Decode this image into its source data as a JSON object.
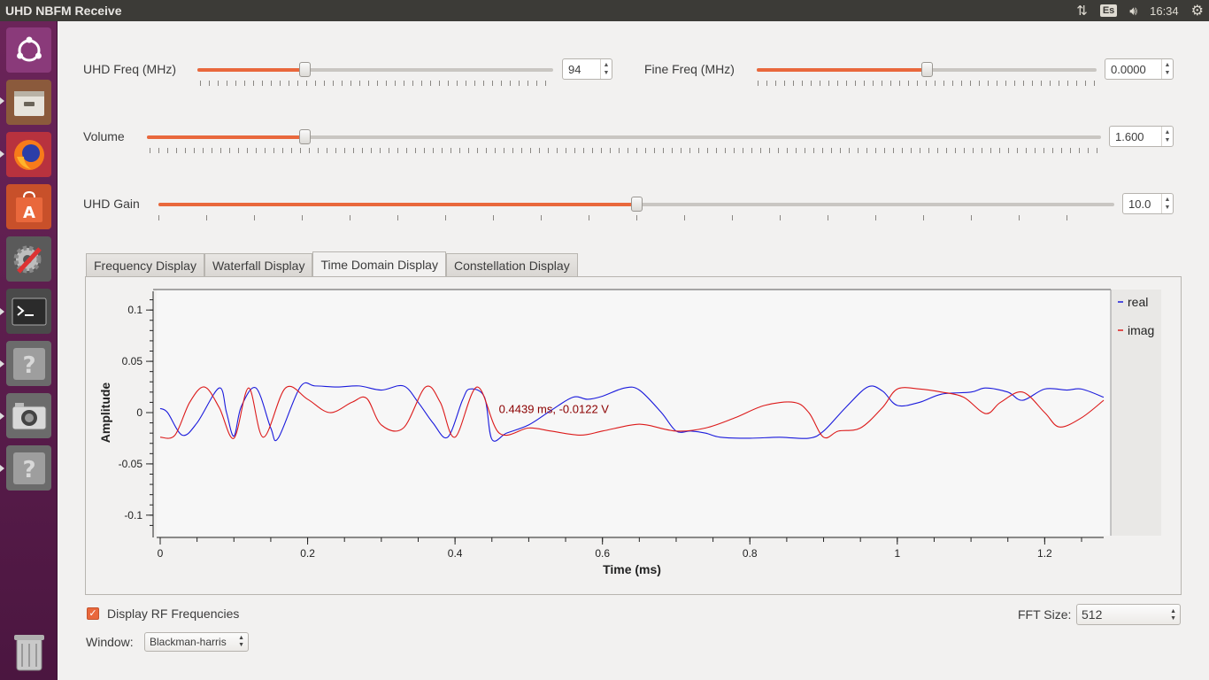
{
  "window": {
    "title": "UHD NBFM Receive"
  },
  "topbar": {
    "keyboard": "Es",
    "time": "16:34"
  },
  "launcher": {
    "items": [
      "ubuntu-dash",
      "files",
      "firefox",
      "software-center",
      "system-settings",
      "terminal",
      "unknown-app",
      "camera",
      "unknown-app-2",
      "trash"
    ]
  },
  "controls": {
    "uhd_freq": {
      "label": "UHD Freq (MHz)",
      "value": "94",
      "fraction": 0.3
    },
    "fine_freq": {
      "label": "Fine Freq (MHz)",
      "value": "0.0000",
      "fraction": 0.5
    },
    "volume": {
      "label": "Volume",
      "value": "1.600",
      "fraction": 0.165
    },
    "uhd_gain": {
      "label": "UHD Gain",
      "value": "10.0",
      "fraction": 0.5
    }
  },
  "tabs": [
    {
      "label": "Frequency Display",
      "active": false
    },
    {
      "label": "Waterfall Display",
      "active": false
    },
    {
      "label": "Time Domain Display",
      "active": true
    },
    {
      "label": "Constellation Display",
      "active": false
    }
  ],
  "chart_data": {
    "type": "line",
    "xlabel": "Time (ms)",
    "ylabel": "Amplitude",
    "xlim": [
      0,
      1.28
    ],
    "ylim": [
      -0.12,
      0.12
    ],
    "xticks": [
      "0",
      "0.2",
      "0.4",
      "0.6",
      "0.8",
      "1",
      "1.2"
    ],
    "yticks": [
      "0.1",
      "0.05",
      "0",
      "-0.05",
      "-0.1"
    ],
    "annotation": "0.4439 ms, -0.0122 V",
    "legend_position": "right",
    "series": [
      {
        "name": "real",
        "color": "#1a1adc",
        "x": [
          0,
          0.01,
          0.03,
          0.05,
          0.08,
          0.09,
          0.1,
          0.11,
          0.13,
          0.15,
          0.16,
          0.19,
          0.21,
          0.24,
          0.27,
          0.3,
          0.33,
          0.35,
          0.37,
          0.39,
          0.41,
          0.42,
          0.44,
          0.45,
          0.47,
          0.5,
          0.53,
          0.56,
          0.58,
          0.6,
          0.63,
          0.65,
          0.68,
          0.7,
          0.72,
          0.74,
          0.76,
          0.8,
          0.84,
          0.88,
          0.9,
          0.93,
          0.96,
          0.98,
          1.0,
          1.03,
          1.06,
          1.1,
          1.12,
          1.15,
          1.17,
          1.2,
          1.23,
          1.25,
          1.28
        ],
        "y": [
          0.004,
          0.0,
          -0.022,
          -0.01,
          0.024,
          0.0,
          -0.023,
          0.006,
          0.024,
          -0.015,
          -0.025,
          0.025,
          0.026,
          0.025,
          0.026,
          0.022,
          0.026,
          0.01,
          -0.01,
          -0.024,
          0.012,
          0.023,
          0.015,
          -0.026,
          -0.02,
          -0.012,
          0.002,
          0.015,
          0.013,
          0.016,
          0.024,
          0.022,
          0.0,
          -0.018,
          -0.018,
          -0.02,
          -0.024,
          -0.025,
          -0.024,
          -0.025,
          -0.018,
          0.005,
          0.025,
          0.021,
          0.007,
          0.01,
          0.018,
          0.02,
          0.024,
          0.02,
          0.012,
          0.023,
          0.022,
          0.023,
          0.015
        ]
      },
      {
        "name": "imag",
        "color": "#dc1a1a",
        "x": [
          0,
          0.02,
          0.04,
          0.06,
          0.08,
          0.1,
          0.12,
          0.14,
          0.17,
          0.2,
          0.23,
          0.26,
          0.28,
          0.3,
          0.33,
          0.36,
          0.38,
          0.4,
          0.43,
          0.46,
          0.5,
          0.53,
          0.57,
          0.6,
          0.64,
          0.66,
          0.7,
          0.74,
          0.78,
          0.82,
          0.86,
          0.88,
          0.9,
          0.92,
          0.95,
          0.98,
          1.0,
          1.03,
          1.06,
          1.09,
          1.12,
          1.14,
          1.17,
          1.2,
          1.22,
          1.25,
          1.28
        ],
        "y": [
          -0.024,
          -0.022,
          0.01,
          0.025,
          0.005,
          -0.025,
          0.024,
          -0.024,
          0.024,
          0.013,
          0.0,
          0.01,
          0.014,
          -0.012,
          -0.015,
          0.025,
          0.01,
          -0.024,
          0.025,
          -0.02,
          -0.015,
          -0.018,
          -0.022,
          -0.018,
          -0.012,
          -0.012,
          -0.018,
          -0.015,
          -0.005,
          0.007,
          0.01,
          0.0,
          -0.024,
          -0.018,
          -0.015,
          0.005,
          0.023,
          0.023,
          0.02,
          0.015,
          -0.001,
          0.01,
          0.02,
          0.0,
          -0.014,
          -0.005,
          0.012
        ]
      }
    ]
  },
  "bottom": {
    "display_rf_label": "Display RF Frequencies",
    "display_rf_checked": true,
    "fft_size_label": "FFT Size:",
    "fft_size_value": "512",
    "window_label": "Window:",
    "window_value": "Blackman-harris"
  }
}
